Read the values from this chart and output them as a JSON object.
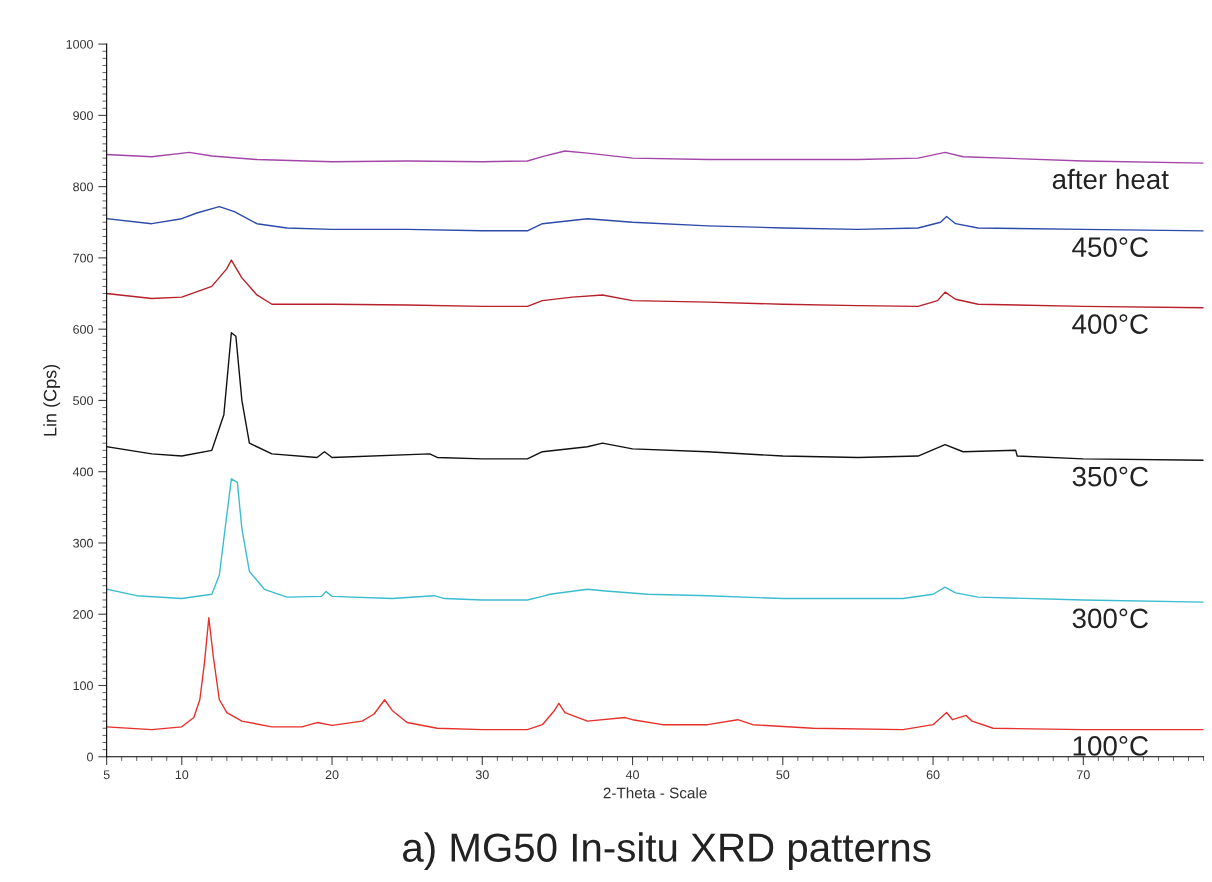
{
  "chart_data": {
    "type": "line",
    "title": "a) MG50 In-situ XRD patterns",
    "xlabel": "2-Theta - Scale",
    "ylabel": "Lin (Cps)",
    "xlim": [
      5,
      78
    ],
    "xticks": [
      5,
      10,
      20,
      30,
      40,
      50,
      60,
      70
    ],
    "ylim": [
      0,
      1000
    ],
    "yticks": [
      0,
      100,
      200,
      300,
      400,
      500,
      600,
      700,
      800,
      900,
      1000
    ],
    "grid": false,
    "legend": false,
    "marker": "none",
    "line_style": "solid",
    "series": [
      {
        "name": "100°C",
        "color": "#e8302a",
        "x": [
          5,
          8,
          10,
          10.8,
          11.2,
          11.5,
          11.8,
          12.1,
          12.5,
          13,
          14,
          16,
          18,
          19,
          20,
          22,
          22.8,
          23.5,
          24,
          25,
          27,
          30,
          33,
          34,
          34.8,
          35.1,
          35.5,
          37,
          39.5,
          40,
          42,
          45,
          47,
          48,
          52,
          58,
          60,
          60.9,
          61.3,
          62.2,
          62.6,
          64,
          70,
          78
        ],
        "values": [
          42,
          38,
          42,
          55,
          80,
          130,
          195,
          140,
          80,
          62,
          50,
          42,
          42,
          48,
          44,
          50,
          60,
          80,
          65,
          48,
          40,
          38,
          38,
          45,
          65,
          75,
          62,
          50,
          55,
          52,
          45,
          45,
          52,
          45,
          40,
          38,
          45,
          62,
          52,
          58,
          50,
          40,
          38,
          38
        ]
      },
      {
        "name": "300°C",
        "color": "#3cbcd0",
        "x": [
          5,
          7,
          10,
          12,
          12.5,
          13,
          13.3,
          13.7,
          14,
          14.5,
          15.5,
          17,
          19.3,
          19.6,
          20,
          24,
          26.8,
          27.5,
          30,
          33,
          34,
          34.5,
          37,
          38,
          41,
          45,
          50,
          58,
          60,
          60.8,
          61.5,
          63,
          70,
          78
        ],
        "values": [
          235,
          226,
          222,
          228,
          255,
          340,
          390,
          385,
          320,
          260,
          235,
          224,
          225,
          232,
          225,
          222,
          226,
          222,
          220,
          220,
          225,
          228,
          235,
          233,
          228,
          226,
          222,
          222,
          228,
          238,
          230,
          224,
          220,
          217
        ]
      },
      {
        "name": "350°C",
        "color": "#111111",
        "x": [
          5,
          8,
          10,
          12,
          12.8,
          13.3,
          13.6,
          14,
          14.5,
          16,
          19,
          19.5,
          20,
          26.5,
          27,
          30,
          33,
          34,
          37,
          38,
          40,
          45,
          50,
          55,
          59,
          60.8,
          62,
          65.5,
          65.6,
          70,
          78
        ],
        "values": [
          435,
          425,
          422,
          430,
          480,
          595,
          590,
          500,
          440,
          425,
          420,
          428,
          420,
          425,
          420,
          418,
          418,
          428,
          435,
          440,
          432,
          428,
          422,
          420,
          422,
          438,
          428,
          430,
          422,
          418,
          416
        ]
      },
      {
        "name": "400°C",
        "color": "#b8202a",
        "x": [
          5,
          8,
          10,
          12,
          13,
          13.3,
          14,
          15,
          16,
          20,
          25,
          30,
          33,
          34,
          36,
          38,
          40,
          45,
          50,
          55,
          59,
          60.3,
          60.8,
          61.5,
          63,
          70,
          78
        ],
        "values": [
          650,
          643,
          645,
          660,
          685,
          697,
          672,
          648,
          635,
          635,
          634,
          632,
          632,
          640,
          645,
          648,
          640,
          638,
          635,
          633,
          632,
          640,
          652,
          642,
          635,
          632,
          630
        ]
      },
      {
        "name": "450°C",
        "color": "#2c4aa8",
        "x": [
          5,
          8,
          10,
          11,
          12.5,
          13.5,
          15,
          17,
          20,
          25,
          30,
          33,
          34,
          37,
          40,
          45,
          50,
          55,
          59,
          60.5,
          60.9,
          61.5,
          63,
          70,
          78
        ],
        "values": [
          755,
          748,
          755,
          763,
          772,
          765,
          748,
          742,
          740,
          740,
          738,
          738,
          748,
          755,
          750,
          745,
          742,
          740,
          742,
          750,
          758,
          748,
          742,
          740,
          738
        ]
      },
      {
        "name": "after heat",
        "color": "#a444a8",
        "x": [
          5,
          8,
          10.5,
          12,
          15,
          20,
          25,
          30,
          33,
          34,
          35.5,
          37,
          40,
          45,
          50,
          55,
          59,
          60.8,
          62,
          70,
          78
        ],
        "values": [
          845,
          842,
          848,
          843,
          838,
          835,
          836,
          835,
          836,
          842,
          850,
          847,
          840,
          838,
          838,
          838,
          840,
          848,
          842,
          836,
          833
        ]
      }
    ]
  }
}
